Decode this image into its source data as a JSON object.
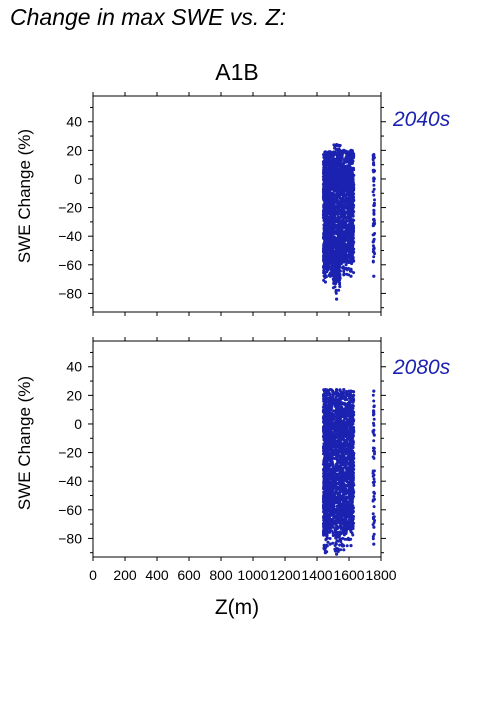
{
  "title": "Change in max SWE vs. Z:",
  "chart_data": [
    {
      "type": "scatter",
      "title": "A1B",
      "panel_label": "2040s",
      "ylabel": "SWE Change (%)",
      "xlabel": "",
      "xlim": [
        0,
        1800
      ],
      "ylim": [
        -93,
        58
      ],
      "x_ticks": [
        0,
        200,
        400,
        600,
        800,
        1000,
        1200,
        1400,
        1600,
        1800
      ],
      "y_ticks": [
        -80,
        -60,
        -40,
        -20,
        0,
        20,
        40
      ],
      "y_tick_labels": [
        "−80",
        "−60",
        "−40",
        "−20",
        "0",
        "20",
        "40"
      ],
      "point_color": "#1c22b0",
      "clusters": [
        {
          "x": [
            1440,
            1465
          ],
          "y": [
            -72,
            19
          ]
        },
        {
          "x": [
            1465,
            1500
          ],
          "y": [
            -68,
            19
          ]
        },
        {
          "x": [
            1500,
            1545
          ],
          "y": [
            -84,
            24
          ]
        },
        {
          "x": [
            1545,
            1590
          ],
          "y": [
            -67,
            20
          ]
        },
        {
          "x": [
            1595,
            1630
          ],
          "y": [
            -68,
            20
          ]
        },
        {
          "x": [
            1750,
            1760
          ],
          "y": [
            -68,
            17
          ]
        }
      ]
    },
    {
      "type": "scatter",
      "title": "",
      "panel_label": "2080s",
      "ylabel": "SWE Change (%)",
      "xlabel": "Z(m)",
      "xlim": [
        0,
        1800
      ],
      "ylim": [
        -93,
        58
      ],
      "x_ticks": [
        0,
        200,
        400,
        600,
        800,
        1000,
        1200,
        1400,
        1600,
        1800
      ],
      "x_tick_labels": [
        "0",
        "200",
        "400",
        "600",
        "800",
        "1000",
        "1200",
        "1400",
        "1600",
        "1800"
      ],
      "y_ticks": [
        -80,
        -60,
        -40,
        -20,
        0,
        20,
        40
      ],
      "y_tick_labels": [
        "−80",
        "−60",
        "−40",
        "−20",
        "0",
        "20",
        "40"
      ],
      "point_color": "#1c22b0",
      "clusters": [
        {
          "x": [
            1440,
            1465
          ],
          "y": [
            -90,
            24
          ]
        },
        {
          "x": [
            1465,
            1500
          ],
          "y": [
            -84,
            24
          ]
        },
        {
          "x": [
            1500,
            1545
          ],
          "y": [
            -91,
            24
          ]
        },
        {
          "x": [
            1545,
            1590
          ],
          "y": [
            -88,
            24
          ]
        },
        {
          "x": [
            1595,
            1630
          ],
          "y": [
            -85,
            23
          ]
        },
        {
          "x": [
            1750,
            1760
          ],
          "y": [
            -84,
            23
          ]
        }
      ]
    }
  ]
}
